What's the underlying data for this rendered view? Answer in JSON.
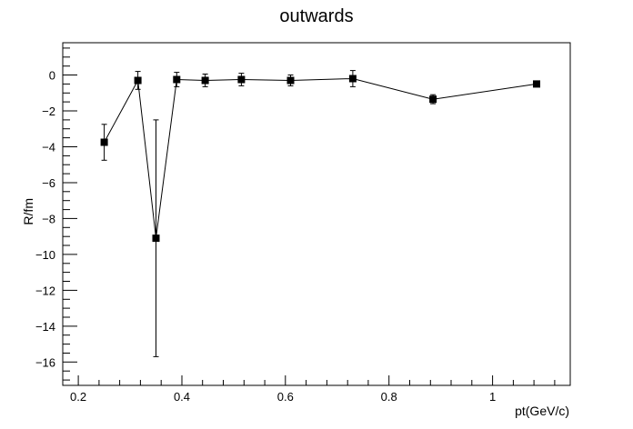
{
  "chart_data": {
    "type": "scatter",
    "title": "outwards",
    "xlabel": "pt(GeV/c)",
    "ylabel": "R/fm",
    "xlim": [
      0.17,
      1.15
    ],
    "ylim": [
      -17.3,
      1.8
    ],
    "x_ticks": [
      0.2,
      0.4,
      0.6,
      0.8,
      1.0
    ],
    "x_tick_labels": [
      "0.2",
      "0.4",
      "0.6",
      "0.8",
      "1"
    ],
    "y_ticks": [
      0,
      -2,
      -4,
      -6,
      -8,
      -10,
      -12,
      -14,
      -16
    ],
    "y_tick_labels": [
      "0",
      "−2",
      "−4",
      "−6",
      "−8",
      "−10",
      "−12",
      "−14",
      "−16"
    ],
    "grid": false,
    "legend": false,
    "marker": "filled-square",
    "line": "connected",
    "series": [
      {
        "points": [
          {
            "x": 0.25,
            "y": -3.75,
            "err": 1.0
          },
          {
            "x": 0.315,
            "y": -0.3,
            "err": 0.5
          },
          {
            "x": 0.35,
            "y": -9.1,
            "err": 6.6
          },
          {
            "x": 0.39,
            "y": -0.25,
            "err": 0.4
          },
          {
            "x": 0.445,
            "y": -0.3,
            "err": 0.35
          },
          {
            "x": 0.515,
            "y": -0.25,
            "err": 0.35
          },
          {
            "x": 0.61,
            "y": -0.3,
            "err": 0.3
          },
          {
            "x": 0.73,
            "y": -0.2,
            "err": 0.45
          },
          {
            "x": 0.885,
            "y": -1.35,
            "err": 0.25
          },
          {
            "x": 1.085,
            "y": -0.5,
            "err": 0.1
          }
        ]
      }
    ]
  }
}
